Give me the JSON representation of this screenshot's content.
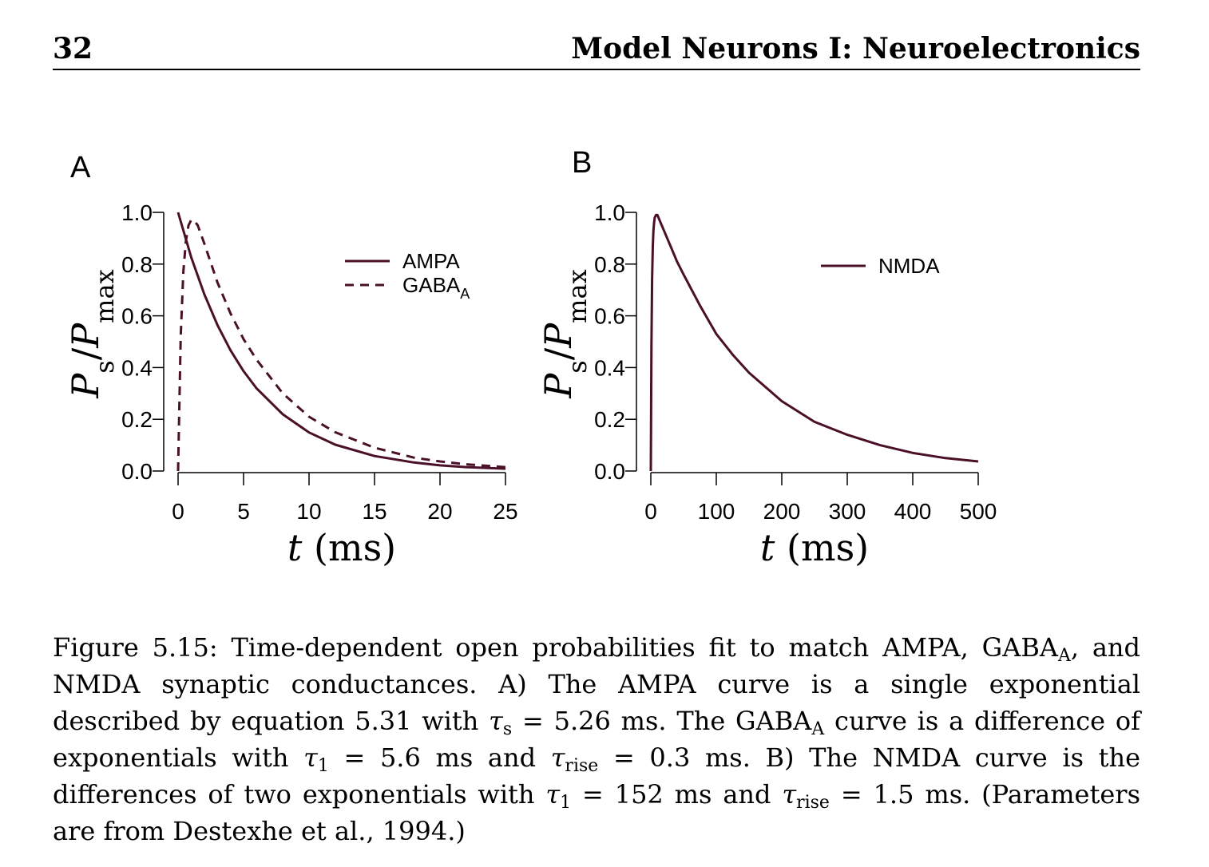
{
  "header": {
    "page_number": "32",
    "chapter_title": "Model Neurons I: Neuroelectronics"
  },
  "colors": {
    "curve": "#4a1028",
    "axis": "#000000"
  },
  "chart_data": [
    {
      "panel_label": "A",
      "type": "line",
      "xlabel": "t (ms)",
      "ylabel": "P_s/P_max",
      "xlim": [
        0,
        25
      ],
      "ylim": [
        0,
        1.0
      ],
      "xticks": [
        "0",
        "5",
        "10",
        "15",
        "20",
        "25"
      ],
      "yticks": [
        "0.0",
        "0.2",
        "0.4",
        "0.6",
        "0.8",
        "1.0"
      ],
      "grid": false,
      "legend_position": "top-right",
      "series": [
        {
          "name": "AMPA",
          "style": "solid",
          "x": [
            0,
            1,
            2,
            3,
            4,
            5,
            6,
            8,
            10,
            12,
            15,
            18,
            20,
            22,
            25
          ],
          "y": [
            1.0,
            0.827,
            0.684,
            0.565,
            0.467,
            0.386,
            0.319,
            0.219,
            0.149,
            0.102,
            0.058,
            0.033,
            0.022,
            0.015,
            0.009
          ]
        },
        {
          "name": "GABA_A",
          "style": "dashed",
          "x": [
            0,
            0.2,
            0.4,
            0.6,
            0.8,
            1.0,
            1.2,
            1.5,
            2,
            3,
            4,
            5,
            6,
            8,
            10,
            12,
            15,
            18,
            20,
            22,
            25
          ],
          "y": [
            0.0,
            0.52,
            0.77,
            0.89,
            0.95,
            0.97,
            0.97,
            0.95,
            0.88,
            0.73,
            0.61,
            0.51,
            0.43,
            0.3,
            0.21,
            0.15,
            0.09,
            0.052,
            0.037,
            0.026,
            0.015
          ]
        }
      ]
    },
    {
      "panel_label": "B",
      "type": "line",
      "xlabel": "t (ms)",
      "ylabel": "P_s/P_max",
      "xlim": [
        0,
        500
      ],
      "ylim": [
        0,
        1.0
      ],
      "xticks": [
        "0",
        "100",
        "200",
        "300",
        "400",
        "500"
      ],
      "yticks": [
        "0.0",
        "0.2",
        "0.4",
        "0.6",
        "0.8",
        "1.0"
      ],
      "grid": false,
      "legend_position": "top-right",
      "series": [
        {
          "name": "NMDA",
          "style": "solid",
          "x": [
            0,
            1,
            2,
            3,
            4,
            5,
            6,
            8,
            10,
            15,
            20,
            30,
            40,
            50,
            75,
            100,
            125,
            150,
            200,
            250,
            300,
            350,
            400,
            450,
            500
          ],
          "y": [
            0.0,
            0.49,
            0.74,
            0.87,
            0.93,
            0.96,
            0.98,
            0.99,
            0.99,
            0.96,
            0.93,
            0.87,
            0.81,
            0.76,
            0.64,
            0.53,
            0.45,
            0.38,
            0.27,
            0.19,
            0.14,
            0.1,
            0.07,
            0.05,
            0.037
          ]
        }
      ]
    }
  ],
  "caption": {
    "figure_label": "Figure 5.15:",
    "text_1": "Time-dependent open probabilities fit to match AMPA, GABA",
    "sub_A1": "A",
    "text_2": ", and NMDA synaptic conductances. A) The AMPA curve is a single exponential described by equation 5.31 with",
    "tau": "τ",
    "sub_s": "s",
    "text_3": "= 5.26 ms. The GABA",
    "sub_A2": "A",
    "text_4": "curve is a difference of exponentials with",
    "sub_1a": "1",
    "text_5": "= 5.6 ms and",
    "sub_rise_a": "rise",
    "text_6": "= 0.3 ms. B) The NMDA curve is the differences of two exponentials with",
    "sub_1b": "1",
    "text_7": "= 152 ms and",
    "sub_rise_b": "rise",
    "text_8": "= 1.5 ms. (Parameters are from Destexhe et al., 1994.)"
  }
}
